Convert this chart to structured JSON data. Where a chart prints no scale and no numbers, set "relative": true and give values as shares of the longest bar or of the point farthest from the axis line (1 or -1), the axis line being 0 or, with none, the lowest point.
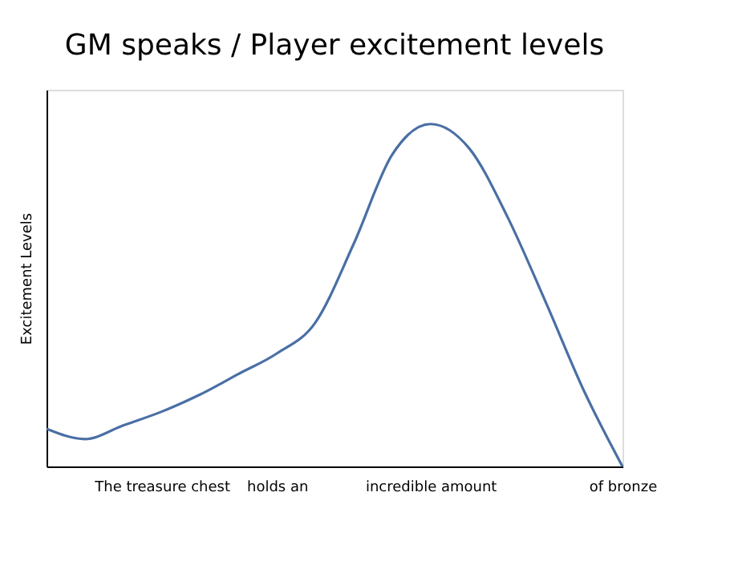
{
  "chart_data": {
    "type": "line",
    "title": "GM speaks / Player excitement levels",
    "ylabel": "Excitement Levels",
    "relative": true,
    "grid": false,
    "legend": false,
    "marker": "none",
    "line_style": "solid",
    "categories": [
      null,
      null,
      null,
      "The treasure chest",
      null,
      null,
      "holds an",
      null,
      null,
      null,
      "incredible amount",
      null,
      null,
      null,
      null,
      "of bronze"
    ],
    "series": [
      {
        "color": "#4a6fa5",
        "values": [
          0.11,
          0.08,
          0.12,
          0.16,
          0.21,
          0.27,
          0.33,
          0.42,
          0.65,
          0.91,
          1.0,
          0.93,
          0.73,
          0.48,
          0.22,
          0
        ]
      }
    ]
  }
}
